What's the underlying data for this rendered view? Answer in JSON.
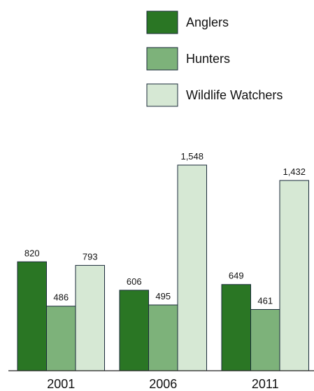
{
  "chart_data": {
    "type": "bar",
    "title": "",
    "xlabel": "",
    "ylabel": "",
    "categories": [
      "2001",
      "2006",
      "2011"
    ],
    "series": [
      {
        "name": "Anglers",
        "values": [
          820,
          606,
          649
        ],
        "labels": [
          "820",
          "606",
          "649"
        ],
        "color": "#2a7624"
      },
      {
        "name": "Hunters",
        "values": [
          486,
          495,
          461
        ],
        "labels": [
          "486",
          "495",
          "461"
        ],
        "color": "#7db27a"
      },
      {
        "name": "Wildlife Watchers",
        "values": [
          793,
          1548,
          1432
        ],
        "labels": [
          "793",
          "1,548",
          "1,432"
        ],
        "color": "#d6e8d4"
      }
    ],
    "ylim": [
      0,
      1548
    ],
    "grid": false,
    "legend": "top-right",
    "bar_border_color": "#1a2a3a"
  }
}
